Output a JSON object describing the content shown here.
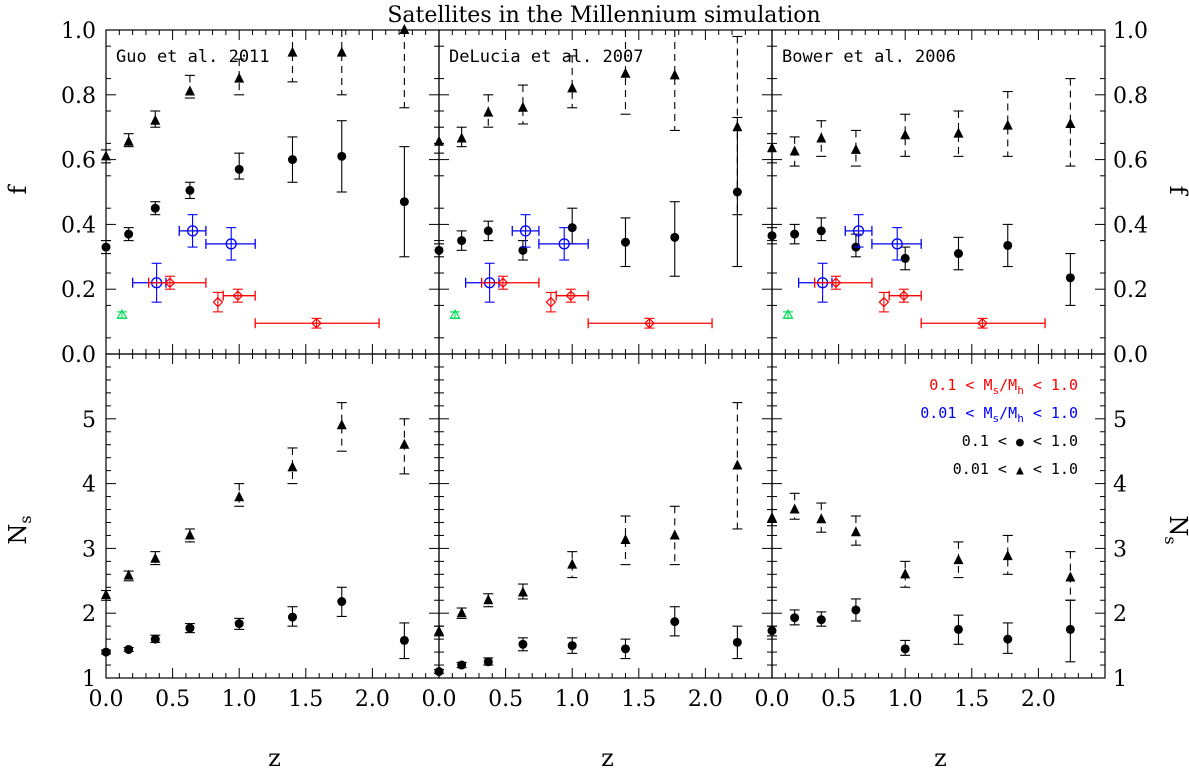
{
  "chart_data": {
    "type": "scatter",
    "title": "Satellites in the Millennium simulation",
    "xlabel": "z",
    "xlim": [
      0,
      2.5
    ],
    "xticks": [
      "0.0",
      "0.5",
      "1.0",
      "1.5",
      "2.0"
    ],
    "xtick_values": [
      0,
      0.5,
      1.0,
      1.5,
      2.0
    ],
    "top": {
      "ylabel": "f",
      "ylim": [
        0,
        1.0
      ],
      "yticks": [
        "0.0",
        "0.2",
        "0.4",
        "0.6",
        "0.8",
        "1.0"
      ],
      "ytick_values": [
        0,
        0.2,
        0.4,
        0.6,
        0.8,
        1.0
      ]
    },
    "bottom": {
      "ylabel": "N",
      "ylabel_sub": "s",
      "ylim": [
        1,
        6
      ],
      "yticks": [
        "1",
        "2",
        "3",
        "4",
        "5"
      ],
      "ytick_values": [
        1,
        2,
        3,
        4,
        5
      ]
    },
    "legend": [
      {
        "prefix": "0.1 < ",
        "main": "M",
        "sub1": "s",
        "mid": "/M",
        "sub2": "h",
        "suffix": " < 1.0",
        "color": "#ff0000"
      },
      {
        "prefix": "0.01 < ",
        "main": "M",
        "sub1": "s",
        "mid": "/M",
        "sub2": "h",
        "suffix": " < 1.0",
        "color": "#0000ff"
      },
      {
        "prefix": "0.1 < ",
        "symbol": "circle",
        "suffix": " < 1.0",
        "color": "#000000"
      },
      {
        "prefix": "0.01 < ",
        "symbol": "triangle",
        "suffix": " < 1.0",
        "color": "#000000"
      }
    ],
    "observations": {
      "red": [
        {
          "x": 0.48,
          "xlo": 0.32,
          "xhi": 0.75,
          "y": 0.22,
          "ylo": 0.2,
          "yhi": 0.24
        },
        {
          "x": 0.84,
          "xlo": 0.84,
          "xhi": 0.84,
          "y": 0.16,
          "ylo": 0.13,
          "yhi": 0.19
        },
        {
          "x": 0.99,
          "xlo": 0.88,
          "xhi": 1.12,
          "y": 0.18,
          "ylo": 0.16,
          "yhi": 0.2
        },
        {
          "x": 1.58,
          "xlo": 1.12,
          "xhi": 2.05,
          "y": 0.095,
          "ylo": 0.08,
          "yhi": 0.11
        }
      ],
      "blue": [
        {
          "x": 0.38,
          "xlo": 0.2,
          "xhi": 0.45,
          "y": 0.22,
          "ylo": 0.16,
          "yhi": 0.28
        },
        {
          "x": 0.65,
          "xlo": 0.55,
          "xhi": 0.75,
          "y": 0.38,
          "ylo": 0.33,
          "yhi": 0.43
        },
        {
          "x": 0.94,
          "xlo": 0.75,
          "xhi": 1.12,
          "y": 0.34,
          "ylo": 0.29,
          "yhi": 0.39
        }
      ],
      "green": [
        {
          "x": 0.12,
          "y": 0.12,
          "ylo": 0.11,
          "yhi": 0.13
        }
      ]
    },
    "panels": [
      {
        "label": "Guo et al. 2011",
        "f_triangles": [
          {
            "x": 0.0,
            "y": 0.61,
            "ylo": 0.59,
            "yhi": 0.63
          },
          {
            "x": 0.17,
            "y": 0.655,
            "ylo": 0.64,
            "yhi": 0.68
          },
          {
            "x": 0.37,
            "y": 0.72,
            "ylo": 0.7,
            "yhi": 0.75
          },
          {
            "x": 0.63,
            "y": 0.81,
            "ylo": 0.79,
            "yhi": 0.86
          },
          {
            "x": 1.0,
            "y": 0.85,
            "ylo": 0.8,
            "yhi": 0.91
          },
          {
            "x": 1.4,
            "y": 0.93,
            "ylo": 0.84,
            "yhi": 1.0
          },
          {
            "x": 1.77,
            "y": 0.93,
            "ylo": 0.8,
            "yhi": 1.0
          },
          {
            "x": 2.24,
            "y": 1.0,
            "ylo": 0.76,
            "yhi": 1.0
          }
        ],
        "f_circles": [
          {
            "x": 0.0,
            "y": 0.33,
            "ylo": 0.31,
            "yhi": 0.35
          },
          {
            "x": 0.17,
            "y": 0.37,
            "ylo": 0.35,
            "yhi": 0.39
          },
          {
            "x": 0.37,
            "y": 0.45,
            "ylo": 0.43,
            "yhi": 0.47
          },
          {
            "x": 0.63,
            "y": 0.505,
            "ylo": 0.48,
            "yhi": 0.53
          },
          {
            "x": 1.0,
            "y": 0.57,
            "ylo": 0.54,
            "yhi": 0.62
          },
          {
            "x": 1.4,
            "y": 0.6,
            "ylo": 0.53,
            "yhi": 0.67
          },
          {
            "x": 1.77,
            "y": 0.61,
            "ylo": 0.5,
            "yhi": 0.72
          },
          {
            "x": 2.24,
            "y": 0.47,
            "ylo": 0.3,
            "yhi": 0.64
          }
        ],
        "n_triangles": [
          {
            "x": 0.0,
            "y": 2.28,
            "ylo": 2.2,
            "yhi": 2.35
          },
          {
            "x": 0.17,
            "y": 2.58,
            "ylo": 2.5,
            "yhi": 2.65
          },
          {
            "x": 0.37,
            "y": 2.84,
            "ylo": 2.75,
            "yhi": 2.95
          },
          {
            "x": 0.63,
            "y": 3.2,
            "ylo": 3.1,
            "yhi": 3.3
          },
          {
            "x": 1.0,
            "y": 3.79,
            "ylo": 3.65,
            "yhi": 4.0
          },
          {
            "x": 1.4,
            "y": 4.25,
            "ylo": 4.0,
            "yhi": 4.55
          },
          {
            "x": 1.77,
            "y": 4.9,
            "ylo": 4.5,
            "yhi": 5.25
          },
          {
            "x": 2.24,
            "y": 4.6,
            "ylo": 4.15,
            "yhi": 5.0
          }
        ],
        "n_circles": [
          {
            "x": 0.0,
            "y": 1.4,
            "ylo": 1.37,
            "yhi": 1.43
          },
          {
            "x": 0.17,
            "y": 1.44,
            "ylo": 1.41,
            "yhi": 1.47
          },
          {
            "x": 0.37,
            "y": 1.6,
            "ylo": 1.55,
            "yhi": 1.66
          },
          {
            "x": 0.63,
            "y": 1.77,
            "ylo": 1.7,
            "yhi": 1.84
          },
          {
            "x": 1.0,
            "y": 1.84,
            "ylo": 1.75,
            "yhi": 1.92
          },
          {
            "x": 1.4,
            "y": 1.94,
            "ylo": 1.8,
            "yhi": 2.1
          },
          {
            "x": 1.77,
            "y": 2.18,
            "ylo": 1.95,
            "yhi": 2.4
          },
          {
            "x": 2.24,
            "y": 1.58,
            "ylo": 1.3,
            "yhi": 1.85
          }
        ]
      },
      {
        "label": "DeLucia et al. 2007",
        "f_triangles": [
          {
            "x": 0.0,
            "y": 0.655,
            "ylo": 0.62,
            "yhi": 0.7
          },
          {
            "x": 0.17,
            "y": 0.665,
            "ylo": 0.64,
            "yhi": 0.7
          },
          {
            "x": 0.37,
            "y": 0.745,
            "ylo": 0.7,
            "yhi": 0.8
          },
          {
            "x": 0.63,
            "y": 0.76,
            "ylo": 0.71,
            "yhi": 0.83
          },
          {
            "x": 1.0,
            "y": 0.82,
            "ylo": 0.76,
            "yhi": 0.92
          },
          {
            "x": 1.4,
            "y": 0.865,
            "ylo": 0.74,
            "yhi": 1.0
          },
          {
            "x": 1.77,
            "y": 0.86,
            "ylo": 0.69,
            "yhi": 1.0
          },
          {
            "x": 2.24,
            "y": 0.7,
            "ylo": 0.43,
            "yhi": 0.98
          }
        ],
        "f_circles": [
          {
            "x": 0.0,
            "y": 0.32,
            "ylo": 0.3,
            "yhi": 0.34
          },
          {
            "x": 0.17,
            "y": 0.35,
            "ylo": 0.32,
            "yhi": 0.38
          },
          {
            "x": 0.37,
            "y": 0.38,
            "ylo": 0.35,
            "yhi": 0.41
          },
          {
            "x": 0.63,
            "y": 0.32,
            "ylo": 0.29,
            "yhi": 0.35
          },
          {
            "x": 1.0,
            "y": 0.39,
            "ylo": 0.34,
            "yhi": 0.45
          },
          {
            "x": 1.4,
            "y": 0.345,
            "ylo": 0.27,
            "yhi": 0.42
          },
          {
            "x": 1.77,
            "y": 0.36,
            "ylo": 0.24,
            "yhi": 0.47
          },
          {
            "x": 2.24,
            "y": 0.5,
            "ylo": 0.27,
            "yhi": 0.73
          }
        ],
        "n_triangles": [
          {
            "x": 0.0,
            "y": 1.72,
            "ylo": 1.65,
            "yhi": 1.8
          },
          {
            "x": 0.17,
            "y": 2.0,
            "ylo": 1.92,
            "yhi": 2.08
          },
          {
            "x": 0.37,
            "y": 2.2,
            "ylo": 2.1,
            "yhi": 2.3
          },
          {
            "x": 0.63,
            "y": 2.32,
            "ylo": 2.22,
            "yhi": 2.45
          },
          {
            "x": 1.0,
            "y": 2.75,
            "ylo": 2.55,
            "yhi": 2.95
          },
          {
            "x": 1.4,
            "y": 3.13,
            "ylo": 2.75,
            "yhi": 3.5
          },
          {
            "x": 1.77,
            "y": 3.2,
            "ylo": 2.75,
            "yhi": 3.65
          },
          {
            "x": 2.24,
            "y": 4.28,
            "ylo": 3.3,
            "yhi": 5.25
          }
        ],
        "n_circles": [
          {
            "x": 0.0,
            "y": 1.1,
            "ylo": 1.07,
            "yhi": 1.13
          },
          {
            "x": 0.17,
            "y": 1.2,
            "ylo": 1.16,
            "yhi": 1.24
          },
          {
            "x": 0.37,
            "y": 1.25,
            "ylo": 1.2,
            "yhi": 1.31
          },
          {
            "x": 0.63,
            "y": 1.52,
            "ylo": 1.42,
            "yhi": 1.62
          },
          {
            "x": 1.0,
            "y": 1.5,
            "ylo": 1.38,
            "yhi": 1.62
          },
          {
            "x": 1.4,
            "y": 1.45,
            "ylo": 1.3,
            "yhi": 1.6
          },
          {
            "x": 1.77,
            "y": 1.87,
            "ylo": 1.65,
            "yhi": 2.1
          },
          {
            "x": 2.24,
            "y": 1.55,
            "ylo": 1.3,
            "yhi": 1.8
          }
        ]
      },
      {
        "label": "Bower et al. 2006",
        "f_triangles": [
          {
            "x": 0.0,
            "y": 0.635,
            "ylo": 0.59,
            "yhi": 0.68
          },
          {
            "x": 0.17,
            "y": 0.625,
            "ylo": 0.58,
            "yhi": 0.67
          },
          {
            "x": 0.37,
            "y": 0.665,
            "ylo": 0.61,
            "yhi": 0.72
          },
          {
            "x": 0.63,
            "y": 0.63,
            "ylo": 0.58,
            "yhi": 0.69
          },
          {
            "x": 1.0,
            "y": 0.675,
            "ylo": 0.61,
            "yhi": 0.74
          },
          {
            "x": 1.4,
            "y": 0.68,
            "ylo": 0.61,
            "yhi": 0.75
          },
          {
            "x": 1.77,
            "y": 0.705,
            "ylo": 0.61,
            "yhi": 0.81
          },
          {
            "x": 2.24,
            "y": 0.71,
            "ylo": 0.58,
            "yhi": 0.85
          }
        ],
        "f_circles": [
          {
            "x": 0.0,
            "y": 0.365,
            "ylo": 0.34,
            "yhi": 0.39
          },
          {
            "x": 0.17,
            "y": 0.37,
            "ylo": 0.34,
            "yhi": 0.4
          },
          {
            "x": 0.37,
            "y": 0.38,
            "ylo": 0.35,
            "yhi": 0.42
          },
          {
            "x": 0.63,
            "y": 0.33,
            "ylo": 0.3,
            "yhi": 0.37
          },
          {
            "x": 1.0,
            "y": 0.295,
            "ylo": 0.26,
            "yhi": 0.33
          },
          {
            "x": 1.4,
            "y": 0.31,
            "ylo": 0.26,
            "yhi": 0.36
          },
          {
            "x": 1.77,
            "y": 0.335,
            "ylo": 0.27,
            "yhi": 0.4
          },
          {
            "x": 2.24,
            "y": 0.235,
            "ylo": 0.15,
            "yhi": 0.31
          }
        ],
        "n_triangles": [
          {
            "x": 0.0,
            "y": 3.47,
            "ylo": 3.35,
            "yhi": 3.6
          },
          {
            "x": 0.17,
            "y": 3.6,
            "ylo": 3.45,
            "yhi": 3.85
          },
          {
            "x": 0.37,
            "y": 3.45,
            "ylo": 3.25,
            "yhi": 3.7
          },
          {
            "x": 0.63,
            "y": 3.25,
            "ylo": 3.05,
            "yhi": 3.5
          },
          {
            "x": 1.0,
            "y": 2.6,
            "ylo": 2.4,
            "yhi": 2.8
          },
          {
            "x": 1.4,
            "y": 2.82,
            "ylo": 2.55,
            "yhi": 3.1
          },
          {
            "x": 1.77,
            "y": 2.88,
            "ylo": 2.6,
            "yhi": 3.2
          },
          {
            "x": 2.24,
            "y": 2.55,
            "ylo": 2.2,
            "yhi": 2.95
          }
        ],
        "n_circles": [
          {
            "x": 0.0,
            "y": 1.73,
            "ylo": 1.65,
            "yhi": 1.8
          },
          {
            "x": 0.17,
            "y": 1.93,
            "ylo": 1.82,
            "yhi": 2.05
          },
          {
            "x": 0.37,
            "y": 1.9,
            "ylo": 1.8,
            "yhi": 2.02
          },
          {
            "x": 0.63,
            "y": 2.05,
            "ylo": 1.88,
            "yhi": 2.22
          },
          {
            "x": 1.0,
            "y": 1.45,
            "ylo": 1.35,
            "yhi": 1.58
          },
          {
            "x": 1.4,
            "y": 1.75,
            "ylo": 1.52,
            "yhi": 1.97
          },
          {
            "x": 1.77,
            "y": 1.6,
            "ylo": 1.38,
            "yhi": 1.85
          },
          {
            "x": 2.24,
            "y": 1.75,
            "ylo": 1.25,
            "yhi": 2.2
          }
        ]
      }
    ]
  }
}
